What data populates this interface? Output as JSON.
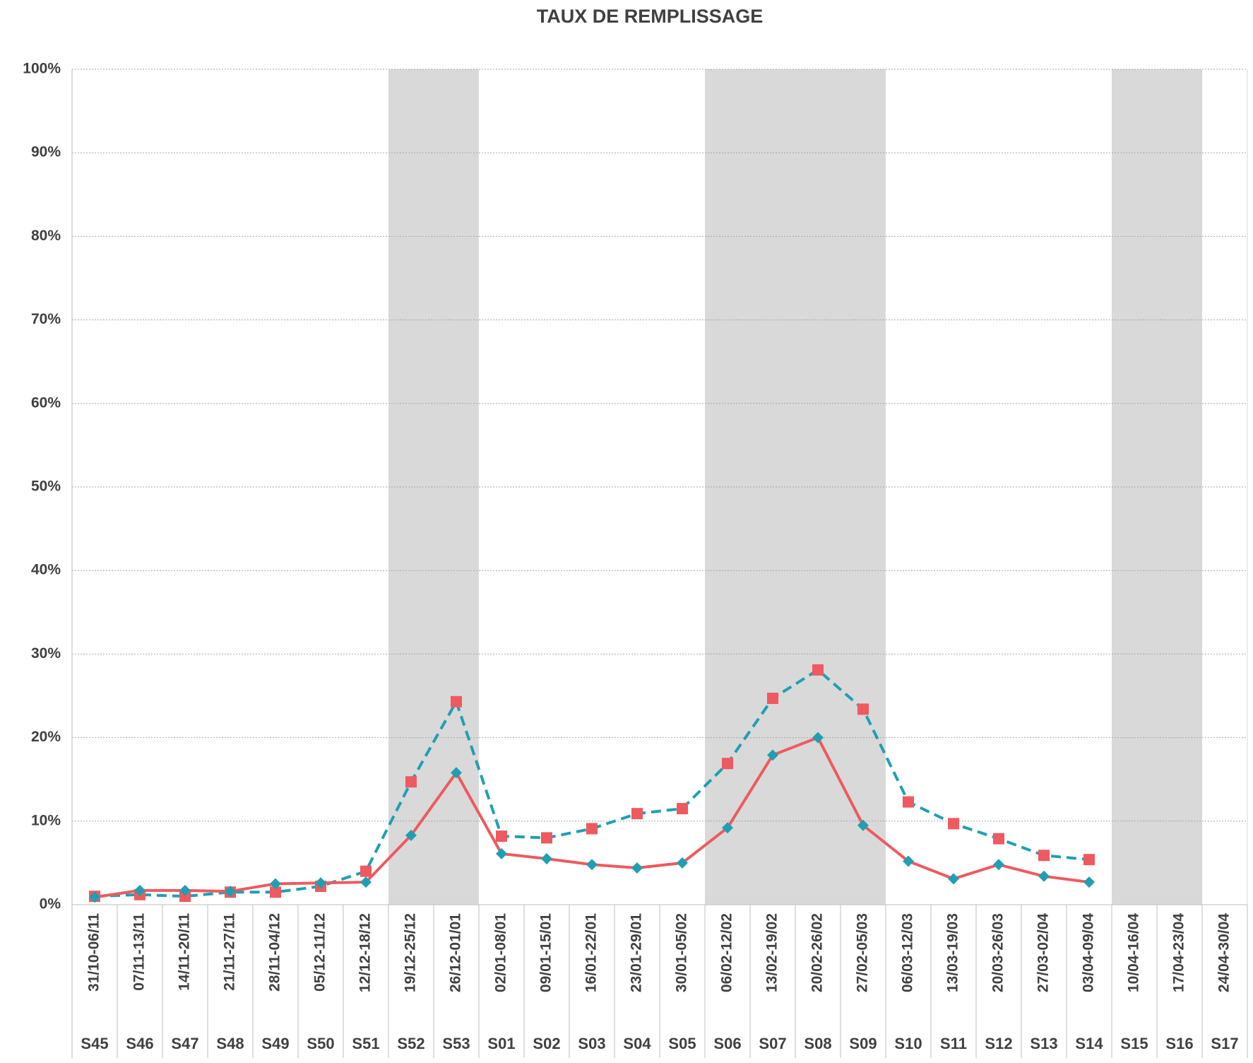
{
  "chart_data": {
    "type": "line",
    "title": "TAUX DE REMPLISSAGE",
    "categories": [
      "31/10-06/11",
      "07/11-13/11",
      "14/11-20/11",
      "21/11-27/11",
      "28/11-04/12",
      "05/12-11/12",
      "12/12-18/12",
      "19/12-25/12",
      "26/12-01/01",
      "02/01-08/01",
      "09/01-15/01",
      "16/01-22/01",
      "23/01-29/01",
      "30/01-05/02",
      "06/02-12/02",
      "13/02-19/02",
      "20/02-26/02",
      "27/02-05/03",
      "06/03-12/03",
      "13/03-19/03",
      "20/03-26/03",
      "27/03-02/04",
      "03/04-09/04",
      "10/04-16/04",
      "17/04-23/04",
      "24/04-30/04"
    ],
    "weeks": [
      "S45",
      "S46",
      "S47",
      "S48",
      "S49",
      "S50",
      "S51",
      "S52",
      "S53",
      "S01",
      "S02",
      "S03",
      "S04",
      "S05",
      "S06",
      "S07",
      "S08",
      "S09",
      "S10",
      "S11",
      "S12",
      "S13",
      "S14",
      "S15",
      "S16",
      "S17"
    ],
    "series": [
      {
        "color": "#1f9fb4",
        "marker_color": "#ee5a5f",
        "marker": "square",
        "dash": true,
        "values": [
          1.0,
          1.2,
          1.0,
          1.5,
          1.5,
          2.2,
          4.0,
          14.7,
          24.3,
          8.2,
          8.0,
          9.1,
          10.9,
          11.5,
          16.9,
          24.7,
          28.1,
          23.4,
          12.3,
          9.7,
          7.9,
          5.9,
          5.4,
          null,
          null,
          null
        ]
      },
      {
        "color": "#ee5a5f",
        "marker_color": "#1f9fb4",
        "marker": "diamond",
        "dash": false,
        "values": [
          0.9,
          1.7,
          1.7,
          1.6,
          2.5,
          2.6,
          2.7,
          8.3,
          15.8,
          6.1,
          5.5,
          4.8,
          4.4,
          5.0,
          9.2,
          17.9,
          20.0,
          9.5,
          5.2,
          3.1,
          4.8,
          3.4,
          2.7,
          null,
          null,
          null
        ]
      }
    ],
    "shaded": [
      [
        7,
        8
      ],
      [
        14,
        17
      ],
      [
        23,
        24
      ]
    ],
    "shade_color": "#d9d9d9",
    "ylim": [
      0,
      100
    ],
    "yticks": [
      {
        "value": 0,
        "label": "0%"
      },
      {
        "value": 10,
        "label": "10%"
      },
      {
        "value": 20,
        "label": "20%"
      },
      {
        "value": 30,
        "label": "30%"
      },
      {
        "value": 40,
        "label": "40%"
      },
      {
        "value": 50,
        "label": "50%"
      },
      {
        "value": 60,
        "label": "60%"
      },
      {
        "value": 70,
        "label": "70%"
      },
      {
        "value": 80,
        "label": "80%"
      },
      {
        "value": 90,
        "label": "90%"
      },
      {
        "value": 100,
        "label": "100%"
      }
    ],
    "grid": true
  }
}
